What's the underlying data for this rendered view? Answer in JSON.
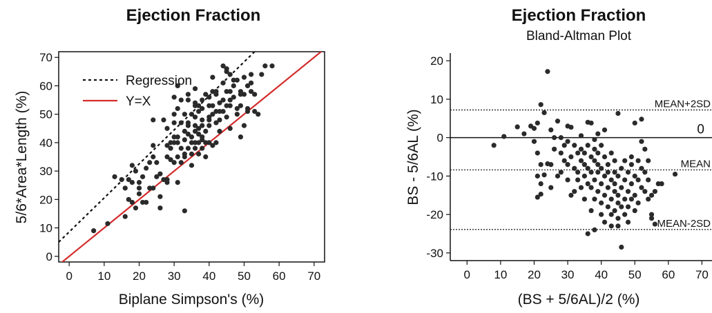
{
  "chart_data": [
    {
      "type": "scatter",
      "title": "Ejection Fraction",
      "xlabel": "Biplane Simpson's (%)",
      "ylabel": "5/6*Area*Length (%)",
      "xlim": [
        -3,
        73
      ],
      "ylim": [
        -2,
        72
      ],
      "xticks": [
        "0",
        "10",
        "20",
        "30",
        "40",
        "50",
        "60",
        "70"
      ],
      "yticks": [
        "0",
        "10",
        "20",
        "30",
        "40",
        "50",
        "60",
        "70"
      ],
      "legend": {
        "position": "top-left",
        "entries": [
          "Regression",
          "Y=X"
        ]
      },
      "lines": [
        {
          "name": "Regression",
          "style": "dashed",
          "color": "#111111",
          "x": [
            -3,
            53
          ],
          "y": [
            5,
            72
          ]
        },
        {
          "name": "Y=X",
          "style": "solid",
          "color": "#d42a2a",
          "x": [
            -3,
            73
          ],
          "y": [
            -3,
            73
          ]
        }
      ],
      "points": [
        [
          7,
          9
        ],
        [
          11,
          11.5
        ],
        [
          13,
          28
        ],
        [
          15,
          27
        ],
        [
          16,
          24
        ],
        [
          16,
          14
        ],
        [
          17,
          20
        ],
        [
          17,
          27
        ],
        [
          18,
          32
        ],
        [
          18,
          19
        ],
        [
          18,
          26
        ],
        [
          19,
          17
        ],
        [
          19,
          30
        ],
        [
          20,
          26
        ],
        [
          20,
          24
        ],
        [
          20,
          22
        ],
        [
          21,
          19
        ],
        [
          21,
          28
        ],
        [
          22,
          31
        ],
        [
          22,
          19
        ],
        [
          23,
          33
        ],
        [
          23,
          24
        ],
        [
          24,
          24
        ],
        [
          24,
          35
        ],
        [
          24,
          39
        ],
        [
          24,
          48
        ],
        [
          25,
          33
        ],
        [
          25,
          28
        ],
        [
          26,
          21
        ],
        [
          26,
          17
        ],
        [
          26,
          29
        ],
        [
          27,
          27
        ],
        [
          27,
          48
        ],
        [
          28,
          26
        ],
        [
          28,
          35
        ],
        [
          28,
          45
        ],
        [
          28,
          39
        ],
        [
          28,
          27
        ],
        [
          29,
          38
        ],
        [
          29,
          40
        ],
        [
          29,
          34
        ],
        [
          30,
          42
        ],
        [
          30,
          50
        ],
        [
          30,
          47
        ],
        [
          30,
          56
        ],
        [
          30,
          40
        ],
        [
          30,
          33
        ],
        [
          31,
          42
        ],
        [
          31,
          40
        ],
        [
          31,
          35
        ],
        [
          31,
          26
        ],
        [
          31,
          60
        ],
        [
          31,
          52
        ],
        [
          32,
          55
        ],
        [
          32,
          33
        ],
        [
          32,
          38
        ],
        [
          32,
          47
        ],
        [
          33,
          44
        ],
        [
          33,
          41
        ],
        [
          33,
          35
        ],
        [
          33,
          36
        ],
        [
          33,
          50
        ],
        [
          33,
          16
        ],
        [
          34,
          46
        ],
        [
          34,
          47
        ],
        [
          34,
          43
        ],
        [
          34,
          38
        ],
        [
          34,
          55
        ],
        [
          34,
          57
        ],
        [
          35,
          40
        ],
        [
          35,
          42
        ],
        [
          35,
          50
        ],
        [
          35,
          36
        ],
        [
          35,
          32
        ],
        [
          36,
          38
        ],
        [
          36,
          53
        ],
        [
          36,
          46
        ],
        [
          36,
          44
        ],
        [
          36,
          40
        ],
        [
          36,
          54
        ],
        [
          36,
          49
        ],
        [
          36,
          59
        ],
        [
          37,
          43
        ],
        [
          37,
          40
        ],
        [
          37,
          51
        ],
        [
          37,
          53
        ],
        [
          37,
          45
        ],
        [
          37,
          36
        ],
        [
          38,
          48
        ],
        [
          38,
          52
        ],
        [
          38,
          55
        ],
        [
          38,
          46
        ],
        [
          38,
          41
        ],
        [
          38,
          38
        ],
        [
          38,
          42
        ],
        [
          39,
          40
        ],
        [
          39,
          44
        ],
        [
          39,
          35
        ],
        [
          39,
          57
        ],
        [
          40,
          40
        ],
        [
          40,
          53
        ],
        [
          40,
          56
        ],
        [
          40,
          46
        ],
        [
          40,
          49
        ],
        [
          40,
          48
        ],
        [
          41,
          50
        ],
        [
          41,
          58
        ],
        [
          41,
          63
        ],
        [
          41,
          53
        ],
        [
          41,
          39
        ],
        [
          42,
          58
        ],
        [
          42,
          47
        ],
        [
          42,
          51
        ],
        [
          42,
          40
        ],
        [
          42,
          57
        ],
        [
          43,
          48
        ],
        [
          43,
          54
        ],
        [
          43,
          51
        ],
        [
          43,
          44
        ],
        [
          44,
          61
        ],
        [
          44,
          67
        ],
        [
          44,
          55
        ],
        [
          44,
          51
        ],
        [
          45,
          58
        ],
        [
          45,
          66
        ],
        [
          45,
          49
        ],
        [
          45,
          53
        ],
        [
          45,
          65
        ],
        [
          46,
          64
        ],
        [
          46,
          55
        ],
        [
          46,
          53
        ],
        [
          46,
          58
        ],
        [
          46,
          45
        ],
        [
          47,
          60
        ],
        [
          47,
          62
        ],
        [
          47,
          56
        ],
        [
          48,
          52
        ],
        [
          48,
          62
        ],
        [
          48,
          50
        ],
        [
          49,
          58
        ],
        [
          49,
          53
        ],
        [
          49,
          57
        ],
        [
          49,
          42
        ],
        [
          50,
          63
        ],
        [
          50,
          57
        ],
        [
          50,
          46
        ],
        [
          51,
          52
        ],
        [
          51,
          60
        ],
        [
          51,
          51
        ],
        [
          52,
          58
        ],
        [
          52,
          64
        ],
        [
          52,
          61
        ],
        [
          53,
          51
        ],
        [
          53,
          57
        ],
        [
          54,
          50
        ],
        [
          55,
          64
        ],
        [
          56,
          67
        ],
        [
          58,
          67
        ]
      ]
    },
    {
      "type": "scatter",
      "title": "Ejection Fraction",
      "subtitle": "Bland-Altman Plot",
      "xlabel": "(BS + 5/6AL)/2 (%)",
      "ylabel": "BS - 5/6AL (%)",
      "xlim": [
        -5,
        73
      ],
      "ylim": [
        -32,
        22
      ],
      "xticks": [
        "0",
        "10",
        "20",
        "30",
        "40",
        "50",
        "60",
        "70"
      ],
      "yticks": [
        "-30",
        "-20",
        "-10",
        "0",
        "10",
        "20"
      ],
      "reference_lines": [
        {
          "label": "MEAN+2SD",
          "y": 7.2,
          "style": "dotted"
        },
        {
          "label": "0",
          "y": 0,
          "style": "solid"
        },
        {
          "label": "MEAN",
          "y": -8.4,
          "style": "dotted"
        },
        {
          "label": "MEAN-2SD",
          "y": -23.9,
          "style": "dotted"
        }
      ],
      "points": [
        [
          8,
          -2
        ],
        [
          11,
          0.3
        ],
        [
          15,
          2.8
        ],
        [
          17,
          1
        ],
        [
          19,
          3
        ],
        [
          20,
          2.4
        ],
        [
          20,
          -1
        ],
        [
          21,
          3.8
        ],
        [
          21,
          -4
        ],
        [
          21,
          -10
        ],
        [
          21,
          -15.5
        ],
        [
          22,
          8.6
        ],
        [
          22,
          -7
        ],
        [
          22,
          -12
        ],
        [
          22,
          -14.7
        ],
        [
          23,
          6.5
        ],
        [
          23,
          -9.7
        ],
        [
          24,
          17.2
        ],
        [
          24,
          -6.8
        ],
        [
          25,
          2
        ],
        [
          25,
          -13
        ],
        [
          25,
          -7
        ],
        [
          26,
          0
        ],
        [
          26,
          -3
        ],
        [
          27,
          4.3
        ],
        [
          27,
          -10
        ],
        [
          28,
          0
        ],
        [
          28,
          -4
        ],
        [
          28,
          -9
        ],
        [
          29,
          -2
        ],
        [
          29,
          -6
        ],
        [
          30,
          -1
        ],
        [
          30,
          -7
        ],
        [
          30,
          -11
        ],
        [
          30,
          3
        ],
        [
          31,
          -15
        ],
        [
          31,
          -5
        ],
        [
          31,
          2.7
        ],
        [
          32,
          -8
        ],
        [
          32,
          -2
        ],
        [
          32,
          -14
        ],
        [
          33,
          -4
        ],
        [
          33,
          -9
        ],
        [
          33,
          -11
        ],
        [
          34,
          -6
        ],
        [
          34,
          -3
        ],
        [
          34,
          -13
        ],
        [
          34,
          0.5
        ],
        [
          35,
          -7
        ],
        [
          35,
          -10
        ],
        [
          35,
          -16
        ],
        [
          35,
          -4
        ],
        [
          36,
          -2
        ],
        [
          36,
          -8
        ],
        [
          36,
          -12
        ],
        [
          36,
          -25
        ],
        [
          36,
          4
        ],
        [
          37,
          -5
        ],
        [
          37,
          -9
        ],
        [
          37,
          -13
        ],
        [
          37,
          -19
        ],
        [
          37,
          3.8
        ],
        [
          38,
          -6
        ],
        [
          38,
          -11
        ],
        [
          38,
          -3
        ],
        [
          38,
          -16
        ],
        [
          38,
          -24
        ],
        [
          38,
          -0.5
        ],
        [
          39,
          -7
        ],
        [
          39,
          -9
        ],
        [
          39,
          -14
        ],
        [
          39,
          -4
        ],
        [
          39,
          1
        ],
        [
          40,
          -8
        ],
        [
          40,
          -12
        ],
        [
          40,
          -17
        ],
        [
          40,
          -20
        ],
        [
          40,
          -2
        ],
        [
          41,
          -5
        ],
        [
          41,
          -10
        ],
        [
          41,
          -15
        ],
        [
          41,
          -22
        ],
        [
          41,
          2
        ],
        [
          42,
          -13
        ],
        [
          42,
          -7
        ],
        [
          42,
          -18
        ],
        [
          42,
          -9
        ],
        [
          43,
          -11
        ],
        [
          43,
          -4
        ],
        [
          43,
          -16
        ],
        [
          43,
          -20
        ],
        [
          43,
          -23
        ],
        [
          44,
          -12
        ],
        [
          44,
          -6
        ],
        [
          44,
          -14
        ],
        [
          44,
          -19
        ],
        [
          44,
          -9
        ],
        [
          45,
          -10
        ],
        [
          45,
          -15
        ],
        [
          45,
          -17
        ],
        [
          45,
          -21
        ],
        [
          45,
          -23
        ],
        [
          45,
          6.3
        ],
        [
          46,
          -28.5
        ],
        [
          46,
          -8
        ],
        [
          46,
          -13
        ],
        [
          46,
          -18
        ],
        [
          47,
          -11
        ],
        [
          47,
          -16
        ],
        [
          47,
          -6
        ],
        [
          47,
          -20
        ],
        [
          48,
          -9
        ],
        [
          48,
          -14
        ],
        [
          48,
          -18
        ],
        [
          48,
          -22
        ],
        [
          49,
          -12
        ],
        [
          49,
          -7
        ],
        [
          49,
          -16
        ],
        [
          49,
          -5
        ],
        [
          50,
          -10
        ],
        [
          50,
          -15
        ],
        [
          50,
          -19
        ],
        [
          50,
          3.8
        ],
        [
          51,
          -11
        ],
        [
          51,
          -6
        ],
        [
          51,
          -17
        ],
        [
          52,
          -13
        ],
        [
          52,
          -8
        ],
        [
          52,
          -1
        ],
        [
          52,
          4.8
        ],
        [
          53,
          -9
        ],
        [
          53,
          -14
        ],
        [
          53,
          -3
        ],
        [
          54,
          -16
        ],
        [
          54,
          -11
        ],
        [
          54,
          -6
        ],
        [
          55,
          -20
        ],
        [
          55,
          -15
        ],
        [
          55,
          -21
        ],
        [
          56,
          -22.5
        ],
        [
          56,
          -14
        ],
        [
          57,
          -12
        ],
        [
          58,
          -12
        ],
        [
          62,
          -9.5
        ]
      ]
    }
  ]
}
